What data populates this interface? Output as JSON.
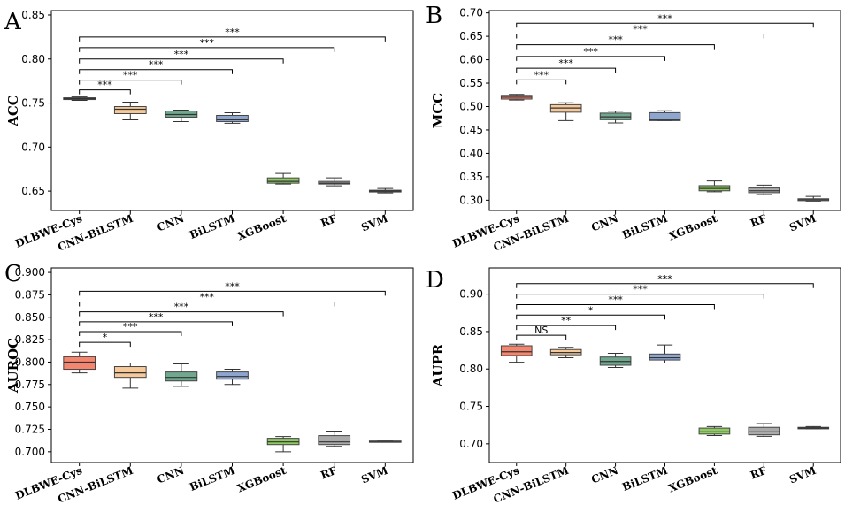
{
  "figure": {
    "colors": {
      "DLBWE-Cys": "#f4866f",
      "CNN-BiLSTM": "#f6c99a",
      "CNN": "#6fa88f",
      "BiLSTM": "#8ea6cf",
      "XGBoost": "#8fcb62",
      "RF": "#aaaaaa",
      "SVM": "#cccccc"
    }
  },
  "chart_data": [
    {
      "panel": "A",
      "type": "box",
      "ylabel": "ACC",
      "ylim": [
        0.628,
        0.855
      ],
      "yticks": [
        "0.65",
        "0.70",
        "0.75",
        "0.80",
        "0.85"
      ],
      "categories": [
        "DLBWE-Cys",
        "CNN-BiLSTM",
        "CNN",
        "BiLSTM",
        "XGBoost",
        "RF",
        "SVM"
      ],
      "boxes": [
        {
          "min": 0.753,
          "q1": 0.754,
          "median": 0.755,
          "q3": 0.756,
          "max": 0.757
        },
        {
          "min": 0.731,
          "q1": 0.738,
          "median": 0.743,
          "q3": 0.746,
          "max": 0.751
        },
        {
          "min": 0.729,
          "q1": 0.734,
          "median": 0.737,
          "q3": 0.741,
          "max": 0.742
        },
        {
          "min": 0.727,
          "q1": 0.729,
          "median": 0.731,
          "q3": 0.736,
          "max": 0.739
        },
        {
          "min": 0.658,
          "q1": 0.659,
          "median": 0.661,
          "q3": 0.665,
          "max": 0.67
        },
        {
          "min": 0.656,
          "q1": 0.658,
          "median": 0.659,
          "q3": 0.661,
          "max": 0.665
        },
        {
          "min": 0.648,
          "q1": 0.649,
          "median": 0.65,
          "q3": 0.651,
          "max": 0.653
        }
      ],
      "brackets": [
        {
          "to": "CNN-BiLSTM",
          "label": "***",
          "level": 0.765
        },
        {
          "to": "CNN",
          "label": "***",
          "level": 0.776
        },
        {
          "to": "BiLSTM",
          "label": "***",
          "level": 0.788
        },
        {
          "to": "XGBoost",
          "label": "***",
          "level": 0.8
        },
        {
          "to": "RF",
          "label": "***",
          "level": 0.813
        },
        {
          "to": "SVM",
          "label": "***",
          "level": 0.825
        }
      ]
    },
    {
      "panel": "B",
      "type": "box",
      "ylabel": "MCC",
      "ylim": [
        0.278,
        0.705
      ],
      "yticks": [
        "0.30",
        "0.35",
        "0.40",
        "0.45",
        "0.50",
        "0.55",
        "0.60",
        "0.65",
        "0.70"
      ],
      "categories": [
        "DLBWE-Cys",
        "CNN-BiLSTM",
        "CNN",
        "BiLSTM",
        "XGBoost",
        "RF",
        "SVM"
      ],
      "boxes": [
        {
          "min": 0.514,
          "q1": 0.516,
          "median": 0.52,
          "q3": 0.524,
          "max": 0.526
        },
        {
          "min": 0.47,
          "q1": 0.488,
          "median": 0.497,
          "q3": 0.504,
          "max": 0.508
        },
        {
          "min": 0.465,
          "q1": 0.472,
          "median": 0.478,
          "q3": 0.486,
          "max": 0.49
        },
        {
          "min": 0.47,
          "q1": 0.47,
          "median": 0.472,
          "q3": 0.487,
          "max": 0.491
        },
        {
          "min": 0.318,
          "q1": 0.32,
          "median": 0.325,
          "q3": 0.331,
          "max": 0.341
        },
        {
          "min": 0.312,
          "q1": 0.316,
          "median": 0.32,
          "q3": 0.326,
          "max": 0.332
        },
        {
          "min": 0.298,
          "q1": 0.299,
          "median": 0.301,
          "q3": 0.303,
          "max": 0.308
        }
      ],
      "brackets": [
        {
          "to": "CNN-BiLSTM",
          "label": "***",
          "level": 0.557
        },
        {
          "to": "CNN",
          "label": "***",
          "level": 0.582
        },
        {
          "to": "BiLSTM",
          "label": "***",
          "level": 0.607
        },
        {
          "to": "XGBoost",
          "label": "***",
          "level": 0.632
        },
        {
          "to": "RF",
          "label": "***",
          "level": 0.655
        },
        {
          "to": "SVM",
          "label": "***",
          "level": 0.678
        }
      ]
    },
    {
      "panel": "C",
      "type": "box",
      "ylabel": "AUROC",
      "ylim": [
        0.688,
        0.905
      ],
      "yticks": [
        "0.700",
        "0.725",
        "0.750",
        "0.775",
        "0.800",
        "0.825",
        "0.850",
        "0.875",
        "0.900"
      ],
      "categories": [
        "DLBWE-Cys",
        "CNN-BiLSTM",
        "CNN",
        "BiLSTM",
        "XGBoost",
        "RF",
        "SVM"
      ],
      "boxes": [
        {
          "min": 0.788,
          "q1": 0.792,
          "median": 0.8,
          "q3": 0.806,
          "max": 0.811
        },
        {
          "min": 0.771,
          "q1": 0.783,
          "median": 0.788,
          "q3": 0.795,
          "max": 0.799
        },
        {
          "min": 0.773,
          "q1": 0.779,
          "median": 0.783,
          "q3": 0.789,
          "max": 0.798
        },
        {
          "min": 0.775,
          "q1": 0.781,
          "median": 0.784,
          "q3": 0.789,
          "max": 0.792
        },
        {
          "min": 0.7,
          "q1": 0.708,
          "median": 0.711,
          "q3": 0.715,
          "max": 0.717
        },
        {
          "min": 0.706,
          "q1": 0.708,
          "median": 0.711,
          "q3": 0.718,
          "max": 0.723
        },
        {
          "min": 0.711,
          "q1": 0.711,
          "median": 0.711,
          "q3": 0.712,
          "max": 0.712
        }
      ],
      "brackets": [
        {
          "to": "CNN-BiLSTM",
          "label": "*",
          "level": 0.822
        },
        {
          "to": "CNN",
          "label": "***",
          "level": 0.834
        },
        {
          "to": "BiLSTM",
          "label": "***",
          "level": 0.845
        },
        {
          "to": "XGBoost",
          "label": "***",
          "level": 0.856
        },
        {
          "to": "RF",
          "label": "***",
          "level": 0.867
        },
        {
          "to": "SVM",
          "label": "***",
          "level": 0.879
        }
      ]
    },
    {
      "panel": "D",
      "type": "box",
      "ylabel": "AUPR",
      "ylim": [
        0.675,
        0.935
      ],
      "yticks": [
        "0.70",
        "0.75",
        "0.80",
        "0.85",
        "0.90"
      ],
      "categories": [
        "DLBWE-Cys",
        "CNN-BiLSTM",
        "CNN",
        "BiLSTM",
        "XGBoost",
        "RF",
        "SVM"
      ],
      "boxes": [
        {
          "min": 0.809,
          "q1": 0.818,
          "median": 0.823,
          "q3": 0.831,
          "max": 0.833
        },
        {
          "min": 0.815,
          "q1": 0.819,
          "median": 0.822,
          "q3": 0.826,
          "max": 0.829
        },
        {
          "min": 0.802,
          "q1": 0.805,
          "median": 0.81,
          "q3": 0.816,
          "max": 0.821
        },
        {
          "min": 0.808,
          "q1": 0.812,
          "median": 0.815,
          "q3": 0.82,
          "max": 0.832
        },
        {
          "min": 0.711,
          "q1": 0.713,
          "median": 0.716,
          "q3": 0.721,
          "max": 0.723
        },
        {
          "min": 0.71,
          "q1": 0.712,
          "median": 0.716,
          "q3": 0.722,
          "max": 0.727
        },
        {
          "min": 0.72,
          "q1": 0.72,
          "median": 0.721,
          "q3": 0.722,
          "max": 0.723
        }
      ],
      "brackets": [
        {
          "to": "CNN-BiLSTM",
          "label": "NS",
          "level": 0.845
        },
        {
          "to": "CNN",
          "label": "**",
          "level": 0.858
        },
        {
          "to": "BiLSTM",
          "label": "*",
          "level": 0.872
        },
        {
          "to": "XGBoost",
          "label": "***",
          "level": 0.886
        },
        {
          "to": "RF",
          "label": "***",
          "level": 0.9
        },
        {
          "to": "SVM",
          "label": "***",
          "level": 0.914
        }
      ]
    }
  ]
}
